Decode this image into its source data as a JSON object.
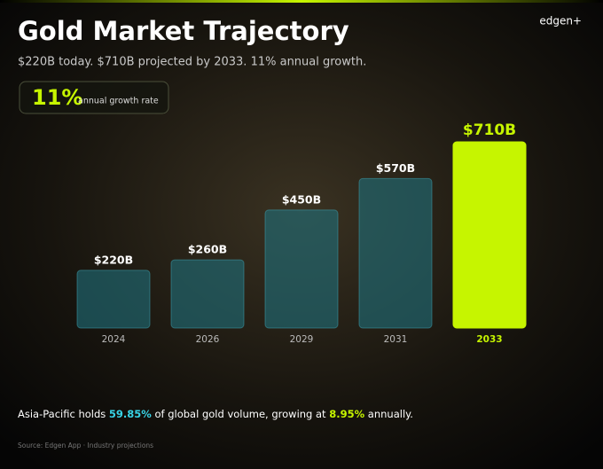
{
  "brand": "edgen+",
  "chart_data": {
    "type": "bar",
    "title": "Gold Market Trajectory",
    "subtitle": "$220B today. $710B projected by 2033. 11% annual growth.",
    "badge": {
      "value": "11%",
      "label": "annual growth rate"
    },
    "categories": [
      "2024",
      "2026",
      "2029",
      "2031",
      "2033"
    ],
    "values": [
      220,
      260,
      450,
      570,
      710
    ],
    "value_labels": [
      "$220B",
      "$260B",
      "$450B",
      "$570B",
      "$710B"
    ],
    "colors": [
      "#1f6f7c",
      "#1f6f7c",
      "#1f6f7c",
      "#1f6f7c",
      "#c6f500"
    ]
  },
  "footnote": [
    "Asia-Pacific holds ",
    "59.85%",
    " of global gold volume, growing at ",
    "8.95%",
    " annually."
  ],
  "source": "Source: Edgen App · Industry projections"
}
